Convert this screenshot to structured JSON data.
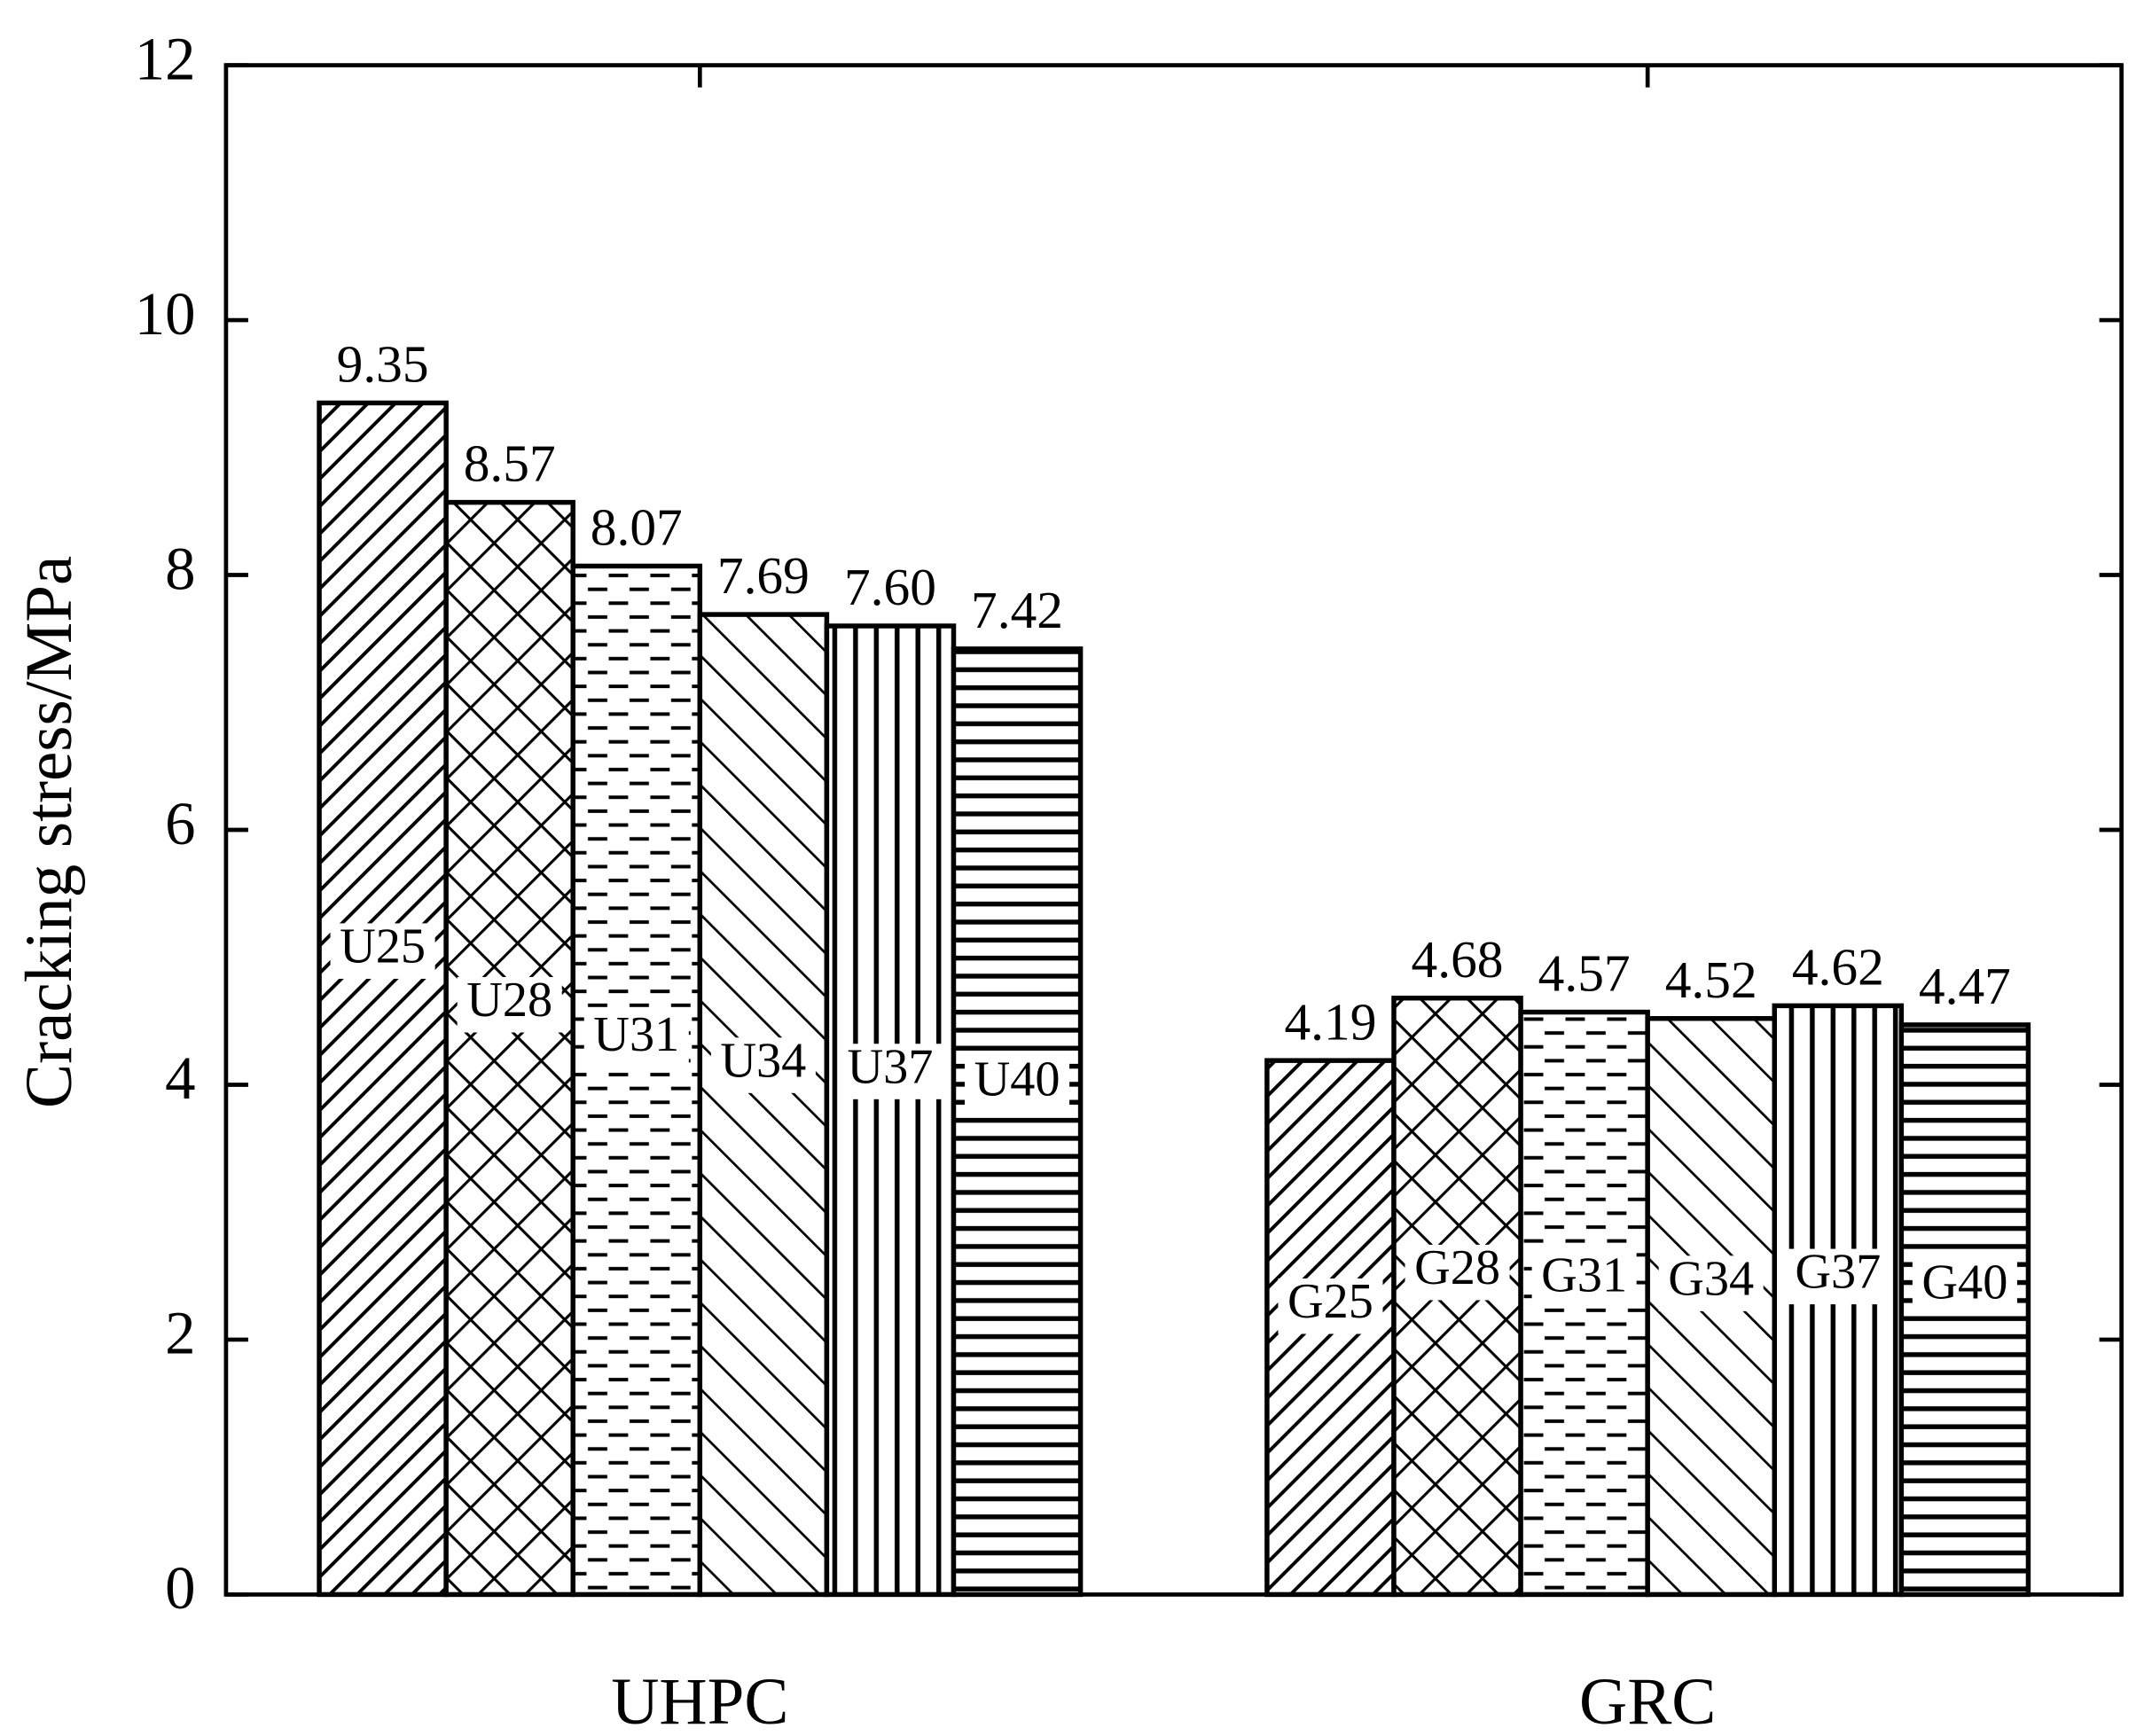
{
  "chart_data": {
    "type": "bar",
    "y_label": "Cracking stress/MPa",
    "categories": [
      "UHPC",
      "GRC"
    ],
    "series": [
      {
        "labels": [
          "U25",
          "G25"
        ],
        "values": [
          9.35,
          4.19
        ],
        "value_labels": [
          "9.35",
          "4.19"
        ],
        "hatch": "diag-right",
        "color": "#000000"
      },
      {
        "labels": [
          "U28",
          "G28"
        ],
        "values": [
          8.57,
          4.68
        ],
        "value_labels": [
          "8.57",
          "4.68"
        ],
        "hatch": "cross",
        "color": "#000000"
      },
      {
        "labels": [
          "U31",
          "G31"
        ],
        "values": [
          8.07,
          4.57
        ],
        "value_labels": [
          "8.07",
          "4.57"
        ],
        "hatch": "dash",
        "color": "#000000"
      },
      {
        "labels": [
          "U34",
          "G34"
        ],
        "values": [
          7.69,
          4.52
        ],
        "value_labels": [
          "7.69",
          "4.52"
        ],
        "hatch": "diag-left",
        "color": "#000000"
      },
      {
        "labels": [
          "U37",
          "G37"
        ],
        "values": [
          7.6,
          4.62
        ],
        "value_labels": [
          "7.60",
          "4.62"
        ],
        "hatch": "vertical",
        "color": "#000000"
      },
      {
        "labels": [
          "U40",
          "G40"
        ],
        "values": [
          7.42,
          4.47
        ],
        "value_labels": [
          "7.42",
          "4.47"
        ],
        "hatch": "horizontal",
        "color": "#000000"
      }
    ],
    "ylim": [
      0,
      12
    ],
    "yticks": [
      0,
      2,
      4,
      6,
      8,
      10,
      12
    ],
    "grid": false
  }
}
